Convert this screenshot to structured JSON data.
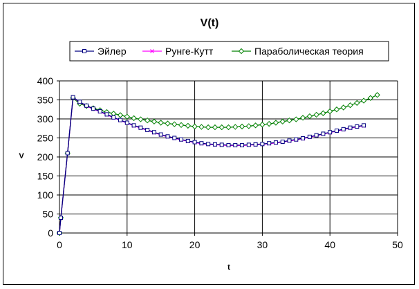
{
  "chart_data": {
    "type": "line",
    "title": "V(t)",
    "xlabel": "t",
    "ylabel": "V",
    "xlim": [
      0,
      50
    ],
    "ylim": [
      0,
      400
    ],
    "xticks": [
      0,
      10,
      20,
      30,
      40,
      50
    ],
    "yticks": [
      0,
      50,
      100,
      150,
      200,
      250,
      300,
      350,
      400
    ],
    "grid": true,
    "legend_position": "top",
    "series": [
      {
        "name": "Эйлер",
        "color": "#000080",
        "marker": "square",
        "x": [
          0,
          0.2,
          1.2,
          2.0,
          3.0,
          4.0,
          5.0,
          6.0,
          7.0,
          8.0,
          9.0,
          10.0,
          11.0,
          12.0,
          13.0,
          14.0,
          15.0,
          16.0,
          17.0,
          18.0,
          19.0,
          20.0,
          21.0,
          22.0,
          23.0,
          24.0,
          25.0,
          26.0,
          27.0,
          28.0,
          29.0,
          30.0,
          31.0,
          32.0,
          33.0,
          34.0,
          35.0,
          36.0,
          37.0,
          38.0,
          39.0,
          40.0,
          41.0,
          42.0,
          43.0,
          44.0,
          45.0
        ],
        "y": [
          0,
          40,
          210,
          357,
          345,
          335,
          327,
          320,
          312,
          304,
          297,
          290,
          283,
          277,
          271,
          265,
          259,
          254,
          250,
          246,
          242,
          239,
          236,
          234,
          233,
          232,
          231,
          231,
          231,
          232,
          233,
          234,
          236,
          238,
          240,
          243,
          246,
          249,
          253,
          257,
          261,
          265,
          269,
          273,
          277,
          280,
          283
        ]
      },
      {
        "name": "Рунге-Кутт",
        "color": "#ff00ff",
        "marker": "x",
        "x": [
          0,
          0.2,
          1.2,
          2.0,
          3.0,
          4.0,
          5.0,
          6.0,
          7.0,
          8.0,
          9.0,
          10.0,
          11.0,
          12.0,
          13.0,
          14.0,
          15.0,
          16.0,
          17.0,
          18.0,
          19.0,
          20.0,
          21.0,
          22.0,
          23.0,
          24.0,
          25.0,
          26.0,
          27.0,
          28.0,
          29.0,
          30.0,
          31.0,
          32.0,
          33.0,
          34.0,
          35.0,
          36.0,
          37.0,
          38.0,
          39.0,
          40.0,
          41.0,
          42.0,
          43.0,
          44.0,
          45.0
        ],
        "y": [
          0,
          40,
          210,
          356,
          344,
          334,
          326,
          319,
          311,
          303,
          296,
          289,
          282,
          276,
          270,
          264,
          258,
          253,
          249,
          245,
          241,
          238,
          235,
          233,
          232,
          231,
          230,
          230,
          230,
          231,
          232,
          233,
          235,
          237,
          239,
          242,
          245,
          248,
          252,
          256,
          260,
          264,
          268,
          272,
          276,
          279,
          282
        ]
      },
      {
        "name": "Параболическая теория",
        "color": "#008000",
        "marker": "diamond",
        "x": [
          0,
          0.2,
          1.2,
          2.0,
          3.0,
          4.0,
          5.0,
          6.0,
          7.0,
          8.0,
          9.0,
          10.0,
          11.0,
          12.0,
          13.0,
          14.0,
          15.0,
          16.0,
          17.0,
          18.0,
          19.0,
          20.0,
          21.0,
          22.0,
          23.0,
          24.0,
          25.0,
          26.0,
          27.0,
          28.0,
          29.0,
          30.0,
          31.0,
          32.0,
          33.0,
          34.0,
          35.0,
          36.0,
          37.0,
          38.0,
          39.0,
          40.0,
          41.0,
          42.0,
          43.0,
          44.0,
          45.0,
          46.0,
          47.0
        ],
        "y": [
          0,
          40,
          210,
          355,
          340,
          334,
          328,
          323,
          318,
          314,
          310,
          306,
          302,
          299,
          296,
          293,
          290,
          288,
          286,
          284,
          282,
          280,
          279,
          278,
          278,
          278,
          278,
          279,
          280,
          281,
          283,
          285,
          287,
          290,
          293,
          296,
          299,
          303,
          307,
          311,
          315,
          320,
          325,
          330,
          336,
          342,
          348,
          355,
          363
        ]
      }
    ]
  }
}
